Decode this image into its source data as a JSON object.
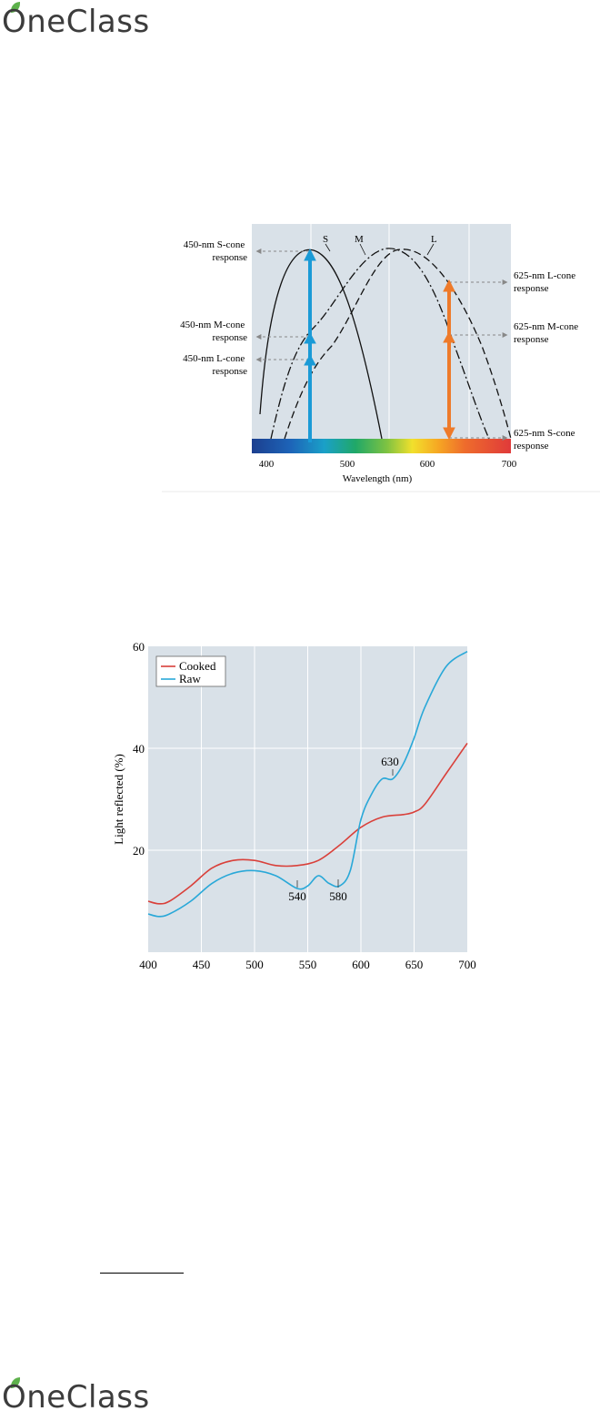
{
  "brand": {
    "name": "OneClass",
    "leaf_color": "#5db14b"
  },
  "cone_chart": {
    "xlabel": "Wavelength (nm)",
    "x_ticks": [
      "400",
      "500",
      "600",
      "700"
    ],
    "curve_labels": [
      "S",
      "M",
      "L"
    ],
    "left_annotations": [
      {
        "line1": "450-nm S-cone",
        "line2": "response"
      },
      {
        "line1": "450-nm M-cone",
        "line2": "response"
      },
      {
        "line1": "450-nm L-cone",
        "line2": "response"
      }
    ],
    "right_annotations": [
      {
        "line1": "625-nm L-cone",
        "line2": "response"
      },
      {
        "line1": "625-nm M-cone",
        "line2": "response"
      },
      {
        "line1": "625-nm S-cone",
        "line2": "response"
      }
    ],
    "colors": {
      "blue_arrow": "#1a9ad6",
      "orange_arrow": "#ee7a2a",
      "background": "#d9e1e8"
    }
  },
  "chart_data": {
    "type": "line",
    "xlabel": "",
    "ylabel": "Light reflected (%)",
    "xlim": [
      400,
      700
    ],
    "ylim": [
      0,
      60
    ],
    "x_ticks": [
      "400",
      "450",
      "500",
      "550",
      "600",
      "650",
      "700"
    ],
    "y_ticks": [
      "20",
      "40",
      "60"
    ],
    "legend_position": "top-left",
    "series": [
      {
        "name": "Cooked",
        "color": "#d9403a",
        "x": [
          400,
          410,
          420,
          440,
          460,
          480,
          500,
          520,
          540,
          560,
          580,
          600,
          620,
          640,
          650,
          660,
          680,
          700
        ],
        "y": [
          10,
          9.5,
          10,
          13,
          16.5,
          18,
          18,
          17,
          17,
          18,
          21,
          24.5,
          26.5,
          27,
          27.5,
          29,
          35,
          41
        ]
      },
      {
        "name": "Raw",
        "color": "#29a8d8",
        "x": [
          400,
          410,
          420,
          440,
          460,
          480,
          500,
          520,
          540,
          550,
          560,
          570,
          580,
          590,
          600,
          610,
          620,
          630,
          640,
          650,
          660,
          680,
          700
        ],
        "y": [
          7.5,
          7,
          7.5,
          10,
          13.5,
          15.5,
          16,
          15,
          12.5,
          13,
          15,
          13.5,
          13,
          16,
          26,
          31,
          34,
          34,
          37,
          42,
          48,
          56,
          59
        ]
      }
    ],
    "annotations": [
      "540",
      "580",
      "630"
    ]
  }
}
